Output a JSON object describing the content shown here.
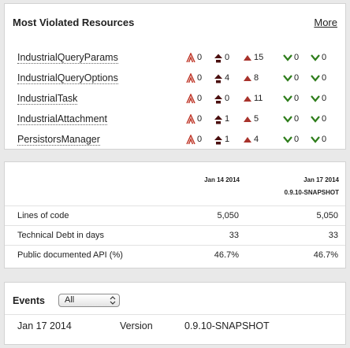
{
  "violations": {
    "title": "Most Violated Resources",
    "more_label": "More",
    "rows": [
      {
        "name": "IndustrialQueryParams",
        "blocker": "0",
        "critical": "0",
        "major": "15",
        "minor": "0",
        "info": "0"
      },
      {
        "name": "IndustrialQueryOptions",
        "blocker": "0",
        "critical": "4",
        "major": "8",
        "minor": "0",
        "info": "0"
      },
      {
        "name": "IndustrialTask",
        "blocker": "0",
        "critical": "0",
        "major": "11",
        "minor": "0",
        "info": "0"
      },
      {
        "name": "IndustrialAttachment",
        "blocker": "0",
        "critical": "1",
        "major": "5",
        "minor": "0",
        "info": "0"
      },
      {
        "name": "PersistorsManager",
        "blocker": "0",
        "critical": "1",
        "major": "4",
        "minor": "0",
        "info": "0"
      }
    ],
    "colors": {
      "blocker": "#c0392b",
      "critical": "#4a0f0f",
      "major": "#a8322b",
      "minor": "#2e7d1b",
      "info": "#2e7d1b"
    },
    "icons": {
      "blocker": "double-up-arrow-icon",
      "critical": "up-arrow-icon",
      "major": "triangle-up-icon",
      "minor": "chevron-down-icon",
      "info": "chevron-down-icon"
    }
  },
  "metrics": {
    "col1_date": "Jan 14 2014",
    "col2_date": "Jan 17 2014",
    "col2_version": "0.9.10-SNAPSHOT",
    "rows": [
      {
        "label": "Lines of code",
        "v1": "5,050",
        "v2": "5,050"
      },
      {
        "label": "Technical Debt in days",
        "v1": "33",
        "v2": "33"
      },
      {
        "label": "Public documented API (%)",
        "v1": "46.7%",
        "v2": "46.7%"
      }
    ]
  },
  "events": {
    "title": "Events",
    "filter_value": "All",
    "rows": [
      {
        "date": "Jan 17 2014",
        "category": "Version",
        "name": "0.9.10-SNAPSHOT"
      }
    ]
  }
}
